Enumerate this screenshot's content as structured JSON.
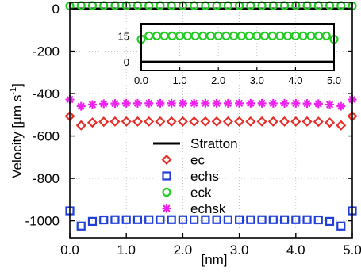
{
  "chart_data": {
    "type": "scatter",
    "xlabel": "[nm]",
    "ylabel_main": "Velocity [",
    "ylabel_unit": "µm s",
    "ylabel_exp": "-1",
    "ylabel_close": "]",
    "xlim": [
      0,
      5
    ],
    "ylim": [
      -1080,
      30
    ],
    "x_ticks": [
      0,
      1,
      2,
      3,
      4,
      5
    ],
    "x_tick_labels": [
      "0.0",
      "1.0",
      "2.0",
      "3.0",
      "4.0",
      "5.0"
    ],
    "y_ticks": [
      0,
      -200,
      -400,
      -600,
      -800,
      -1000
    ],
    "y_tick_labels": [
      "0",
      "-200",
      "-400",
      "-600",
      "-800",
      "-1000"
    ],
    "legend_placement": "center-right",
    "series": [
      {
        "name": "Stratton",
        "marker": "line",
        "color": "#000000",
        "x": [
          0,
          5
        ],
        "y": [
          0,
          0
        ]
      },
      {
        "name": "ec",
        "marker": "diamond",
        "color": "#e8302a",
        "x": [
          0,
          0.2,
          0.4,
          0.6,
          0.8,
          1.0,
          1.2,
          1.4,
          1.6,
          1.8,
          2.0,
          2.2,
          2.4,
          2.6,
          2.8,
          3.0,
          3.2,
          3.4,
          3.6,
          3.8,
          4.0,
          4.2,
          4.4,
          4.6,
          4.8,
          5.0
        ],
        "y": [
          -507,
          -550,
          -537,
          -533,
          -532,
          -532,
          -532,
          -532,
          -532,
          -532,
          -532,
          -532,
          -532,
          -532,
          -532,
          -532,
          -532,
          -532,
          -532,
          -532,
          -532,
          -532,
          -533,
          -537,
          -550,
          -507
        ]
      },
      {
        "name": "echs",
        "marker": "square",
        "color": "#1f3fd8",
        "x": [
          0,
          0.2,
          0.4,
          0.6,
          0.8,
          1.0,
          1.2,
          1.4,
          1.6,
          1.8,
          2.0,
          2.2,
          2.4,
          2.6,
          2.8,
          3.0,
          3.2,
          3.4,
          3.6,
          3.8,
          4.0,
          4.2,
          4.4,
          4.6,
          4.8,
          5.0
        ],
        "y": [
          -953,
          -1025,
          -1003,
          -996,
          -995,
          -995,
          -995,
          -995,
          -995,
          -995,
          -995,
          -995,
          -995,
          -995,
          -995,
          -995,
          -995,
          -995,
          -995,
          -995,
          -995,
          -995,
          -996,
          -1003,
          -1025,
          -953
        ]
      },
      {
        "name": "eck",
        "marker": "circle",
        "color": "#22cc22",
        "x": [
          0,
          0.2,
          0.4,
          0.6,
          0.8,
          1.0,
          1.2,
          1.4,
          1.6,
          1.8,
          2.0,
          2.2,
          2.4,
          2.6,
          2.8,
          3.0,
          3.2,
          3.4,
          3.6,
          3.8,
          4.0,
          4.2,
          4.4,
          4.6,
          4.8,
          5.0
        ],
        "y": [
          13,
          15,
          15,
          15,
          15,
          15,
          15,
          15,
          15,
          15,
          15,
          15,
          15,
          15,
          15,
          15,
          15,
          15,
          15,
          15,
          15,
          15,
          15,
          15,
          15,
          13
        ]
      },
      {
        "name": "echsk",
        "marker": "asterisk",
        "color": "#ee22ee",
        "x": [
          0,
          0.2,
          0.4,
          0.6,
          0.8,
          1.0,
          1.2,
          1.4,
          1.6,
          1.8,
          2.0,
          2.2,
          2.4,
          2.6,
          2.8,
          3.0,
          3.2,
          3.4,
          3.6,
          3.8,
          4.0,
          4.2,
          4.4,
          4.6,
          4.8,
          5.0
        ],
        "y": [
          -428,
          -460,
          -452,
          -448,
          -447,
          -446,
          -446,
          -446,
          -446,
          -446,
          -446,
          -446,
          -446,
          -446,
          -446,
          -446,
          -446,
          -446,
          -446,
          -446,
          -446,
          -447,
          -448,
          -452,
          -460,
          -428
        ]
      }
    ],
    "inset": {
      "xlim": [
        0,
        5
      ],
      "ylim": [
        -5,
        22
      ],
      "x_ticks": [
        0,
        1,
        2,
        3,
        4,
        5
      ],
      "x_tick_labels": [
        "0.0",
        "1.0",
        "2.0",
        "3.0",
        "4.0",
        "5.0"
      ],
      "y_ticks": [
        15,
        0
      ],
      "y_tick_labels": [
        "15",
        "0"
      ],
      "series": [
        {
          "name": "Stratton",
          "marker": "line",
          "color": "#000000",
          "x": [
            0,
            5
          ],
          "y": [
            0,
            0
          ]
        },
        {
          "name": "eck",
          "marker": "circle",
          "color": "#22cc22",
          "x": [
            0,
            0.2,
            0.4,
            0.6,
            0.8,
            1.0,
            1.2,
            1.4,
            1.6,
            1.8,
            2.0,
            2.2,
            2.4,
            2.6,
            2.8,
            3.0,
            3.2,
            3.4,
            3.6,
            3.8,
            4.0,
            4.2,
            4.4,
            4.6,
            4.8,
            5.0
          ],
          "y": [
            13,
            15,
            15,
            15,
            15,
            15,
            15,
            15,
            15,
            15,
            15,
            15,
            15,
            15,
            15,
            15,
            15,
            15,
            15,
            15,
            15,
            15,
            15,
            15,
            15,
            13
          ]
        }
      ]
    }
  }
}
